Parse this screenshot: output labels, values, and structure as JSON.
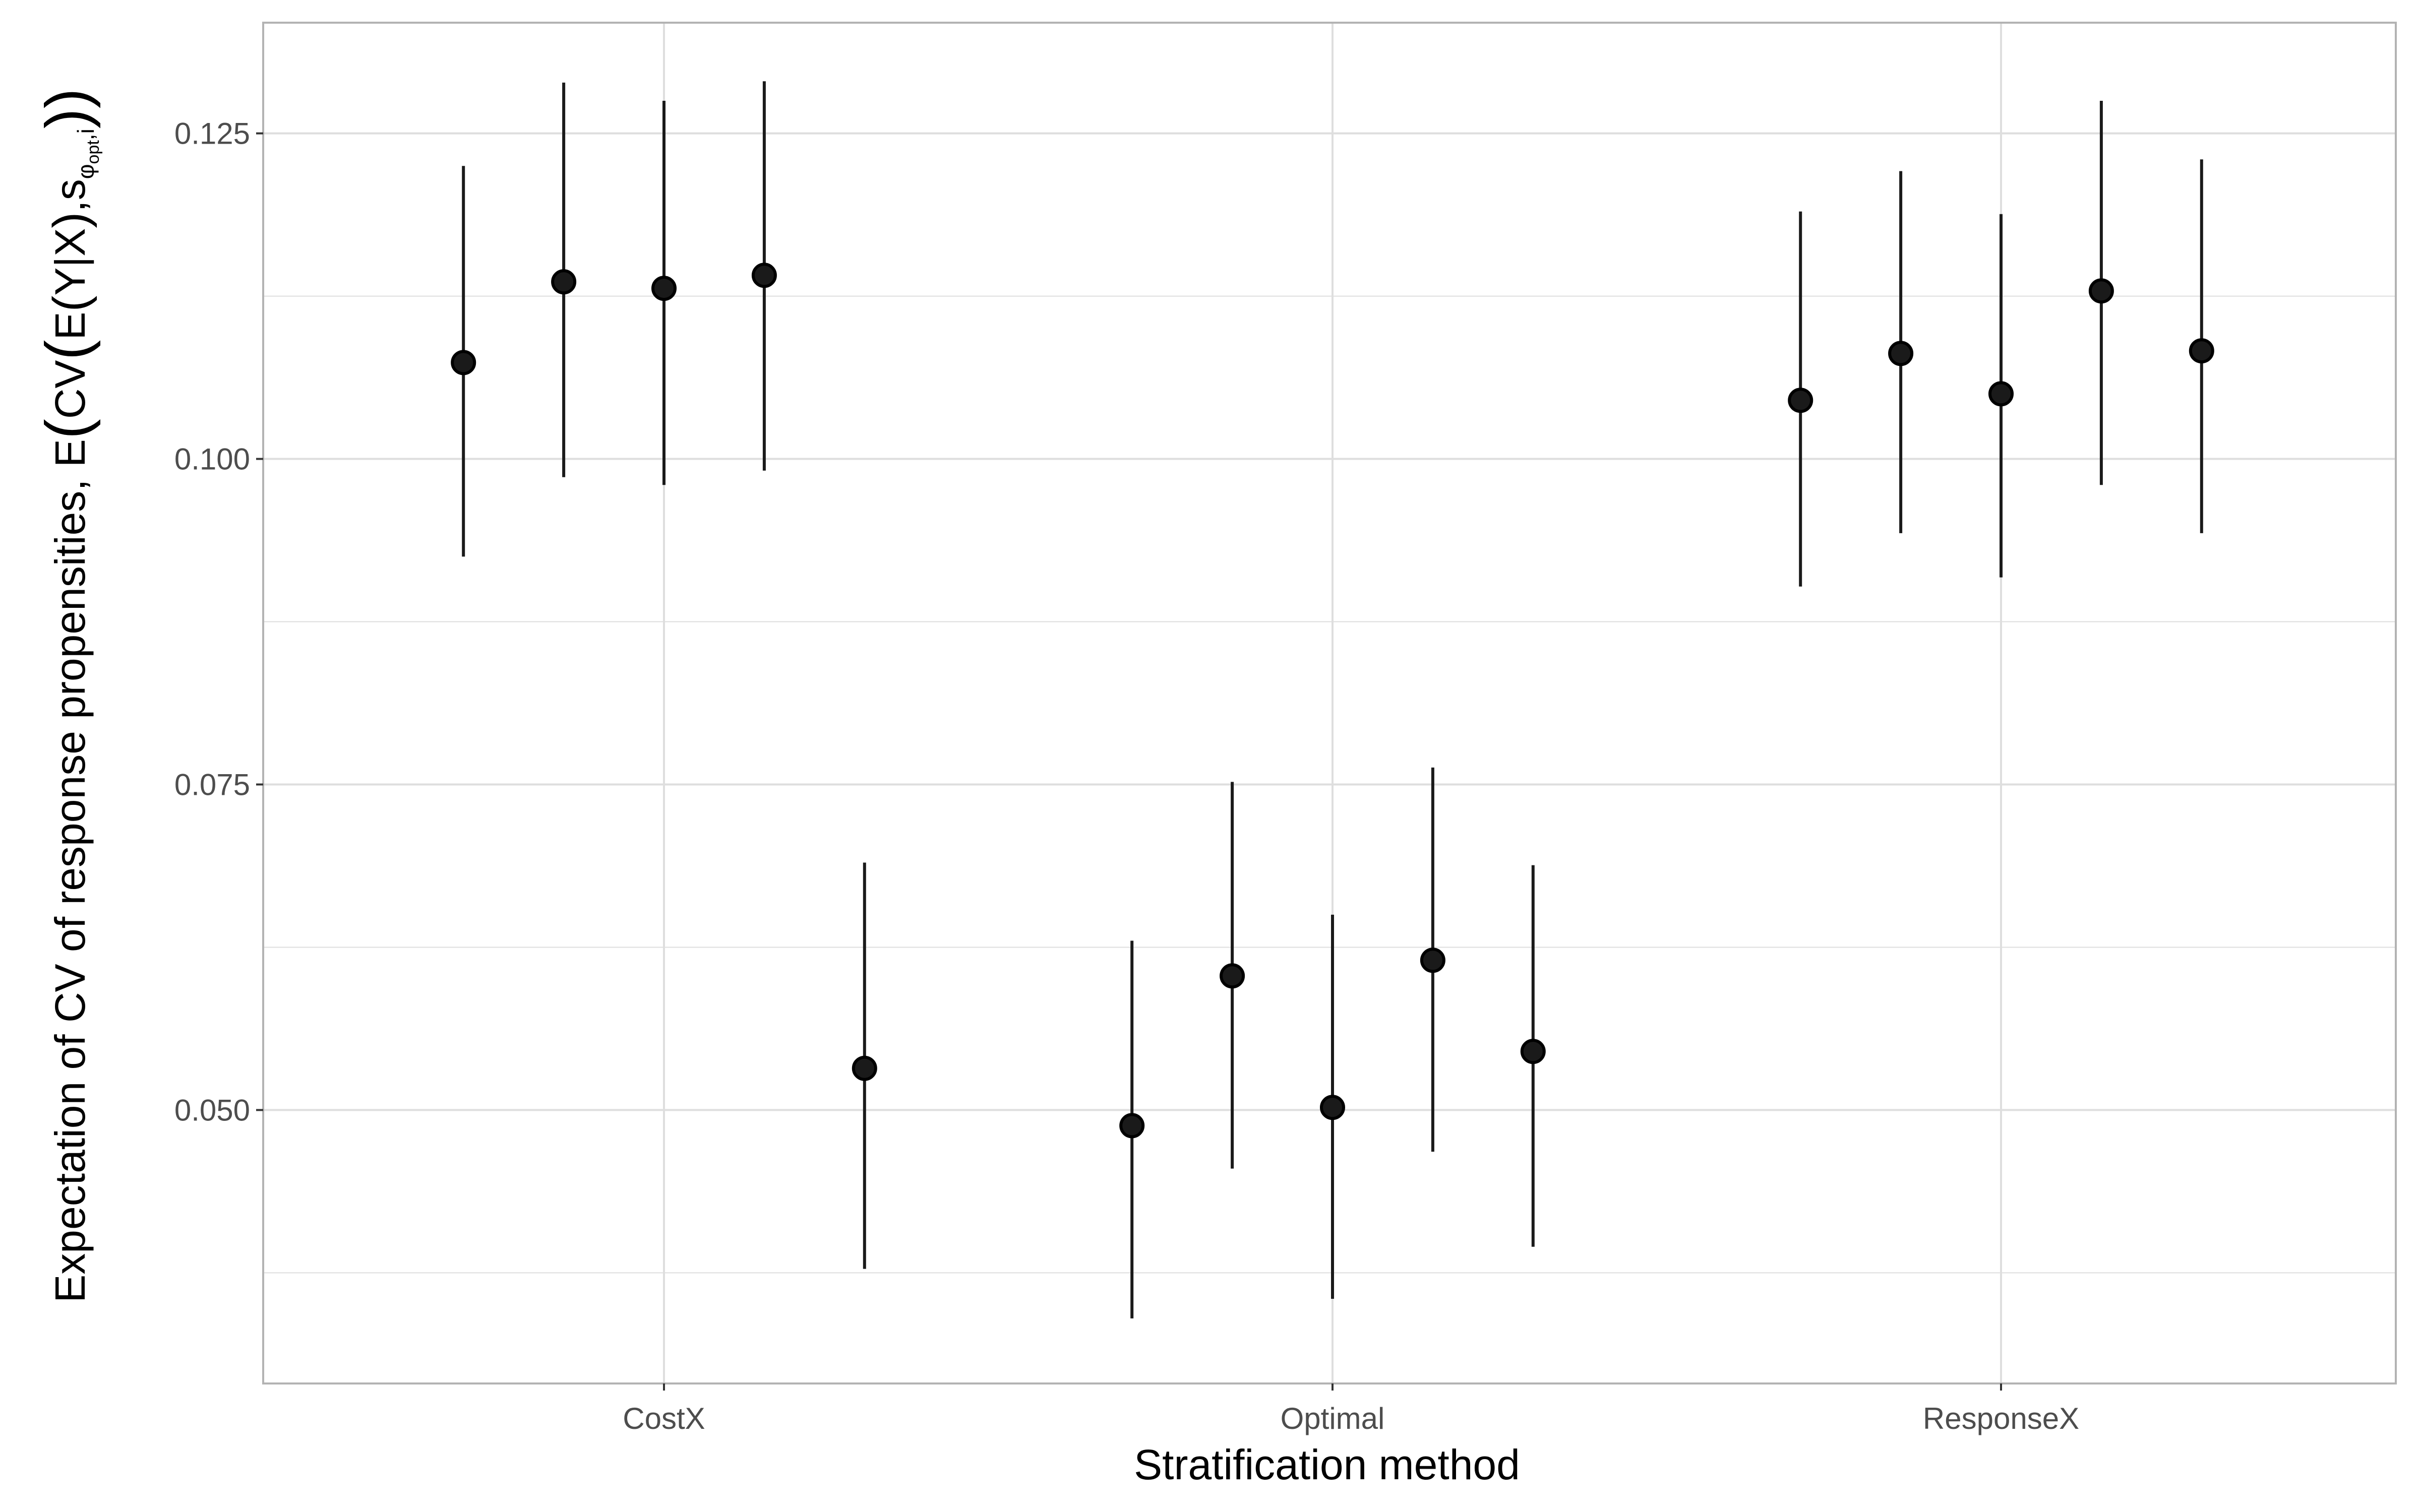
{
  "chart_data": {
    "type": "scatter",
    "subtype": "point-range",
    "xlabel": "Stratification method",
    "ylabel": "Expectation of CV of response propensities, E(CV(E(Y|X),s_φopt,i))",
    "ylabel_parts": {
      "prefix": "Expectation of CV of response propensities, E",
      "open": "(",
      "cv": "CV",
      "e": "E",
      "yx": "Y|X",
      "s": "s",
      "sub_phi": "φ",
      "sub_opt": "opt",
      "sub_i": ",i",
      "close": "))"
    },
    "categories": [
      "CostX",
      "Optimal",
      "ResponseX"
    ],
    "ylim": [
      0.029,
      0.1335
    ],
    "yticks": [
      0.05,
      0.075,
      0.1,
      0.125
    ],
    "ytick_labels": [
      "0.050",
      "0.075",
      "0.100",
      "0.125"
    ],
    "grid": true,
    "colors": {
      "points": "#1a1a1a",
      "grid": "#dedede",
      "border": "#b3b3b3"
    },
    "points": [
      {
        "category": "CostX",
        "offset": -0.3,
        "y": 0.1074,
        "lo": 0.0925,
        "hi": 0.1225
      },
      {
        "category": "CostX",
        "offset": -0.15,
        "y": 0.1136,
        "lo": 0.0986,
        "hi": 0.1289
      },
      {
        "category": "CostX",
        "offset": 0.0,
        "y": 0.1131,
        "lo": 0.098,
        "hi": 0.1275
      },
      {
        "category": "CostX",
        "offset": 0.15,
        "y": 0.1141,
        "lo": 0.0991,
        "hi": 0.129
      },
      {
        "category": "CostX",
        "offset": 0.3,
        "y": 0.0532,
        "lo": 0.0378,
        "hi": 0.069
      },
      {
        "category": "Optimal",
        "offset": -0.3,
        "y": 0.0488,
        "lo": 0.034,
        "hi": 0.063
      },
      {
        "category": "Optimal",
        "offset": -0.15,
        "y": 0.0603,
        "lo": 0.0455,
        "hi": 0.0752
      },
      {
        "category": "Optimal",
        "offset": 0.0,
        "y": 0.0502,
        "lo": 0.0355,
        "hi": 0.065
      },
      {
        "category": "Optimal",
        "offset": 0.15,
        "y": 0.0615,
        "lo": 0.0468,
        "hi": 0.0763
      },
      {
        "category": "Optimal",
        "offset": 0.3,
        "y": 0.0545,
        "lo": 0.0395,
        "hi": 0.0688
      },
      {
        "category": "ResponseX",
        "offset": -0.3,
        "y": 0.1045,
        "lo": 0.0902,
        "hi": 0.119
      },
      {
        "category": "ResponseX",
        "offset": -0.15,
        "y": 0.1081,
        "lo": 0.0943,
        "hi": 0.1221
      },
      {
        "category": "ResponseX",
        "offset": 0.0,
        "y": 0.105,
        "lo": 0.0909,
        "hi": 0.1188
      },
      {
        "category": "ResponseX",
        "offset": 0.15,
        "y": 0.1129,
        "lo": 0.098,
        "hi": 0.1275
      },
      {
        "category": "ResponseX",
        "offset": 0.3,
        "y": 0.1083,
        "lo": 0.0943,
        "hi": 0.123
      }
    ]
  }
}
